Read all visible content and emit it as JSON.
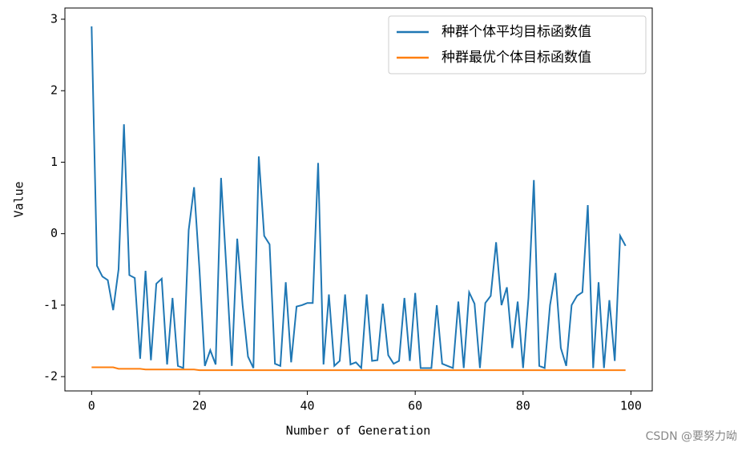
{
  "chart_data": {
    "type": "line",
    "xlabel": "Number of Generation",
    "ylabel": "Value",
    "x": [
      0,
      1,
      2,
      3,
      4,
      5,
      6,
      7,
      8,
      9,
      10,
      11,
      12,
      13,
      14,
      15,
      16,
      17,
      18,
      19,
      20,
      21,
      22,
      23,
      24,
      25,
      26,
      27,
      28,
      29,
      30,
      31,
      32,
      33,
      34,
      35,
      36,
      37,
      38,
      39,
      40,
      41,
      42,
      43,
      44,
      45,
      46,
      47,
      48,
      49,
      50,
      51,
      52,
      53,
      54,
      55,
      56,
      57,
      58,
      59,
      60,
      61,
      62,
      63,
      64,
      65,
      66,
      67,
      68,
      69,
      70,
      71,
      72,
      73,
      74,
      75,
      76,
      77,
      78,
      79,
      80,
      81,
      82,
      83,
      84,
      85,
      86,
      87,
      88,
      89,
      90,
      91,
      92,
      93,
      94,
      95,
      96,
      97,
      98,
      99
    ],
    "series": [
      {
        "name": "种群个体平均目标函数值",
        "color": "#1f77b4",
        "values": [
          2.9,
          -0.45,
          -0.6,
          -0.65,
          -1.07,
          -0.5,
          1.53,
          -0.58,
          -0.62,
          -1.75,
          -0.52,
          -1.77,
          -0.7,
          -0.63,
          -1.83,
          -0.9,
          -1.85,
          -1.88,
          0.05,
          0.65,
          -0.5,
          -1.85,
          -1.63,
          -1.83,
          0.78,
          -0.5,
          -1.85,
          -0.07,
          -1.0,
          -1.72,
          -1.88,
          1.08,
          -0.03,
          -0.15,
          -1.82,
          -1.85,
          -0.68,
          -1.8,
          -1.02,
          -1.0,
          -0.97,
          -0.97,
          0.99,
          -1.83,
          -0.85,
          -1.85,
          -1.78,
          -0.85,
          -1.83,
          -1.8,
          -1.88,
          -0.85,
          -1.78,
          -1.77,
          -0.98,
          -1.7,
          -1.82,
          -1.78,
          -0.9,
          -1.78,
          -0.83,
          -1.88,
          -1.88,
          -1.88,
          -1.0,
          -1.82,
          -1.85,
          -1.88,
          -0.95,
          -1.88,
          -0.82,
          -0.98,
          -1.88,
          -0.97,
          -0.87,
          -0.12,
          -1.0,
          -0.75,
          -1.6,
          -0.95,
          -1.88,
          -0.9,
          0.75,
          -1.85,
          -1.88,
          -1.0,
          -0.55,
          -1.6,
          -1.85,
          -1.0,
          -0.87,
          -0.82,
          0.4,
          -1.88,
          -0.68,
          -1.88,
          -0.93,
          -1.78,
          -0.03,
          -0.17
        ]
      },
      {
        "name": "种群最优个体目标函数值",
        "color": "#ff7f0e",
        "values": [
          -1.87,
          -1.87,
          -1.87,
          -1.87,
          -1.87,
          -1.89,
          -1.89,
          -1.89,
          -1.89,
          -1.89,
          -1.9,
          -1.9,
          -1.9,
          -1.9,
          -1.9,
          -1.9,
          -1.9,
          -1.9,
          -1.9,
          -1.9,
          -1.91,
          -1.91,
          -1.91,
          -1.91,
          -1.91,
          -1.91,
          -1.91,
          -1.91,
          -1.91,
          -1.91,
          -1.91,
          -1.91,
          -1.91,
          -1.91,
          -1.91,
          -1.91,
          -1.91,
          -1.91,
          -1.91,
          -1.91,
          -1.91,
          -1.91,
          -1.91,
          -1.91,
          -1.91,
          -1.91,
          -1.91,
          -1.91,
          -1.91,
          -1.91,
          -1.91,
          -1.91,
          -1.91,
          -1.91,
          -1.91,
          -1.91,
          -1.91,
          -1.91,
          -1.91,
          -1.91,
          -1.91,
          -1.91,
          -1.91,
          -1.91,
          -1.91,
          -1.91,
          -1.91,
          -1.91,
          -1.91,
          -1.91,
          -1.91,
          -1.91,
          -1.91,
          -1.91,
          -1.91,
          -1.91,
          -1.91,
          -1.91,
          -1.91,
          -1.91,
          -1.91,
          -1.91,
          -1.91,
          -1.91,
          -1.91,
          -1.91,
          -1.91,
          -1.91,
          -1.91,
          -1.91,
          -1.91,
          -1.91,
          -1.91,
          -1.91,
          -1.91,
          -1.91,
          -1.91,
          -1.91,
          -1.91,
          -1.91
        ]
      }
    ],
    "xlim": [
      -4.95,
      103.95
    ],
    "xticks": [
      0,
      20,
      40,
      60,
      80,
      100
    ],
    "ylim": [
      -2.2,
      3.157
    ],
    "yticks": [
      -2,
      -1,
      0,
      1,
      2,
      3
    ],
    "legend": "upper right",
    "grid": false,
    "watermark": "CSDN @要努力呦"
  }
}
